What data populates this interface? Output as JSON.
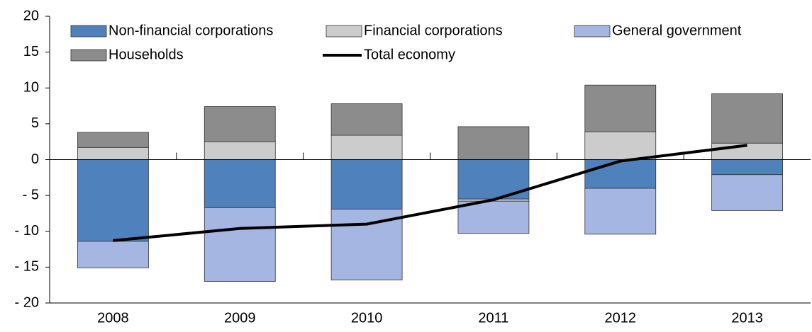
{
  "chart_data": {
    "type": "stacked-bar-line",
    "categories": [
      "2008",
      "2009",
      "2010",
      "2011",
      "2012",
      "2013"
    ],
    "series": [
      {
        "name": "Non-financial corporations",
        "color": "#4f81bd",
        "values": [
          -11.4,
          -6.7,
          -6.9,
          -5.5,
          -4.0,
          -2.1
        ]
      },
      {
        "name": "Financial corporations",
        "color": "#cccccc",
        "values": [
          1.7,
          2.5,
          3.4,
          -0.3,
          3.9,
          2.3
        ]
      },
      {
        "name": "General government",
        "color": "#a6b6e3",
        "values": [
          -3.7,
          -10.3,
          -9.9,
          -4.5,
          -6.4,
          -5.0
        ]
      },
      {
        "name": "Households",
        "color": "#8c8c8c",
        "values": [
          2.1,
          4.9,
          4.4,
          4.6,
          6.5,
          6.9
        ]
      },
      {
        "name": "Total economy",
        "color": "#000000",
        "type": "line",
        "values": [
          -11.3,
          -9.6,
          -9.0,
          -5.6,
          -0.2,
          2.0
        ]
      }
    ],
    "ylim": [
      -20,
      20
    ],
    "yticks": [
      {
        "value": -20,
        "label": "- 20"
      },
      {
        "value": -15,
        "label": "- 15"
      },
      {
        "value": -10,
        "label": "- 10"
      },
      {
        "value": -5,
        "label": "- 5"
      },
      0,
      5,
      10,
      15,
      20
    ]
  }
}
